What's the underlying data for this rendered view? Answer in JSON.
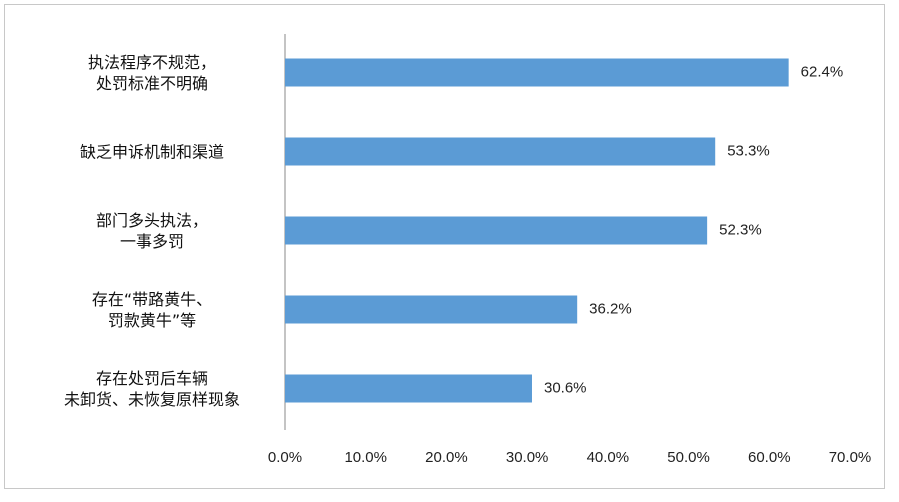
{
  "chart_data": {
    "type": "bar",
    "orientation": "horizontal",
    "categories": [
      "执法程序不规范，\n处罚标准不明确",
      "缺乏申诉机制和渠道",
      "部门多头执法，\n一事多罚",
      "存在“带路黄牛、\n罚款黄牛”等",
      "存在处罚后车辆\n未卸货、未恢复原样现象"
    ],
    "values": [
      62.4,
      53.3,
      52.3,
      36.2,
      30.6
    ],
    "value_labels": [
      "62.4%",
      "53.3%",
      "52.3%",
      "36.2%",
      "30.6%"
    ],
    "color": "#5b9bd5",
    "xlim": [
      0,
      70
    ],
    "xticks": [
      {
        "value": 0,
        "label": "0.0%"
      },
      {
        "value": 10,
        "label": "10.0%"
      },
      {
        "value": 20,
        "label": "20.0%"
      },
      {
        "value": 30,
        "label": "30.0%"
      },
      {
        "value": 40,
        "label": "40.0%"
      },
      {
        "value": 50,
        "label": "50.0%"
      },
      {
        "value": 60,
        "label": "60.0%"
      },
      {
        "value": 70,
        "label": "70.0%"
      }
    ],
    "grid": false
  }
}
